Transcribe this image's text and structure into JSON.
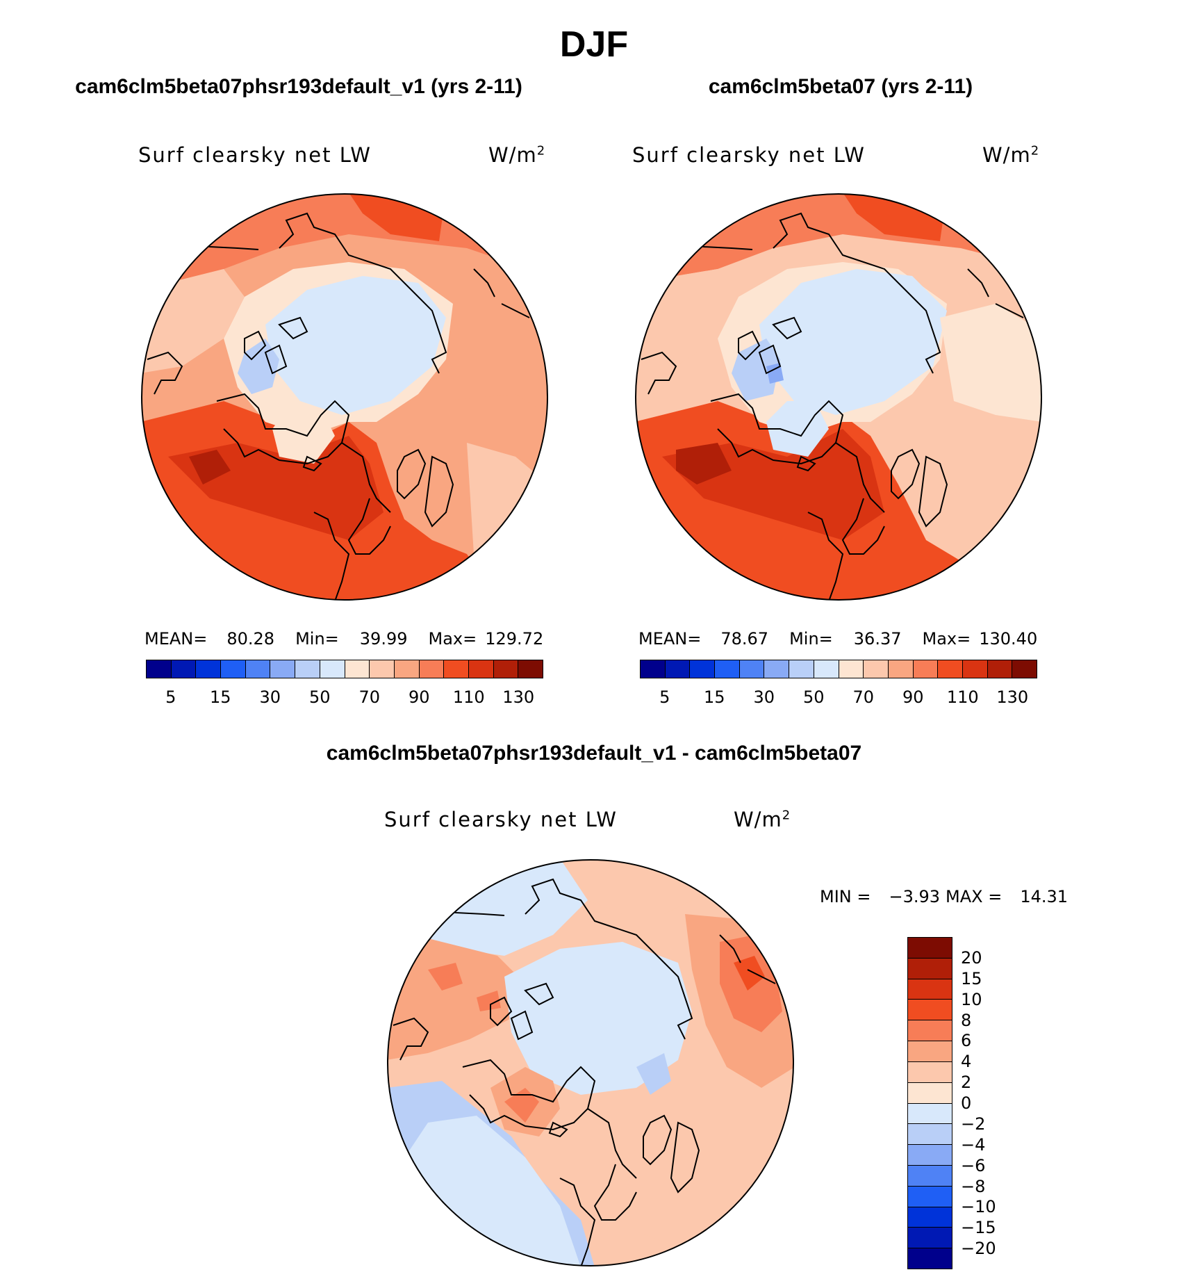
{
  "chart_data": {
    "type": "polar-contour-map",
    "season_title": "DJF",
    "panels": [
      {
        "id": "case",
        "title": "cam6clm5beta07phsr193default_v1 (yrs 2-11)",
        "variable": "Surf clearsky net LW",
        "units": "W/m",
        "units_exponent": "2",
        "stats": {
          "mean_label": "MEAN=",
          "mean": "80.28",
          "min_label": "Min=",
          "min": "39.99",
          "max_label": "Max=",
          "max": "129.72"
        },
        "colorbar_ticks": [
          "5",
          "15",
          "30",
          "50",
          "70",
          "90",
          "110",
          "130"
        ]
      },
      {
        "id": "control",
        "title": "cam6clm5beta07 (yrs 2-11)",
        "variable": "Surf clearsky net LW",
        "units": "W/m",
        "units_exponent": "2",
        "stats": {
          "mean_label": "MEAN=",
          "mean": "78.67",
          "min_label": "Min=",
          "min": "36.37",
          "max_label": "Max=",
          "max": "130.40"
        },
        "colorbar_ticks": [
          "5",
          "15",
          "30",
          "50",
          "70",
          "90",
          "110",
          "130"
        ]
      },
      {
        "id": "difference",
        "title": "cam6clm5beta07phsr193default_v1 - cam6clm5beta07",
        "variable": "Surf clearsky net LW",
        "units": "W/m",
        "units_exponent": "2",
        "minmax": {
          "min_label": "MIN =",
          "min": "−3.93",
          "max_label": "MAX =",
          "max": "14.31"
        },
        "colorbar_ticks": [
          "20",
          "15",
          "10",
          "8",
          "6",
          "4",
          "2",
          "0",
          "−2",
          "−4",
          "−6",
          "−8",
          "−10",
          "−15",
          "−20"
        ]
      }
    ],
    "abs_colors": [
      "#00008c",
      "#0019b4",
      "#0033d9",
      "#1f5ff5",
      "#4f82f5",
      "#89aaf5",
      "#b9cff7",
      "#d8e8fb",
      "#fde5d2",
      "#fcc8ad",
      "#f9a681",
      "#f77d57",
      "#f04d21",
      "#d93412",
      "#b01f08",
      "#7d0c02"
    ],
    "diff_colors": [
      "#7d0c02",
      "#b01f08",
      "#d93412",
      "#f04d21",
      "#f77d57",
      "#f9a681",
      "#fcc8ad",
      "#fde5d2",
      "#d8e8fb",
      "#b9cff7",
      "#89aaf5",
      "#4f82f5",
      "#1f5ff5",
      "#0033d9",
      "#0019b4",
      "#00008c"
    ]
  }
}
